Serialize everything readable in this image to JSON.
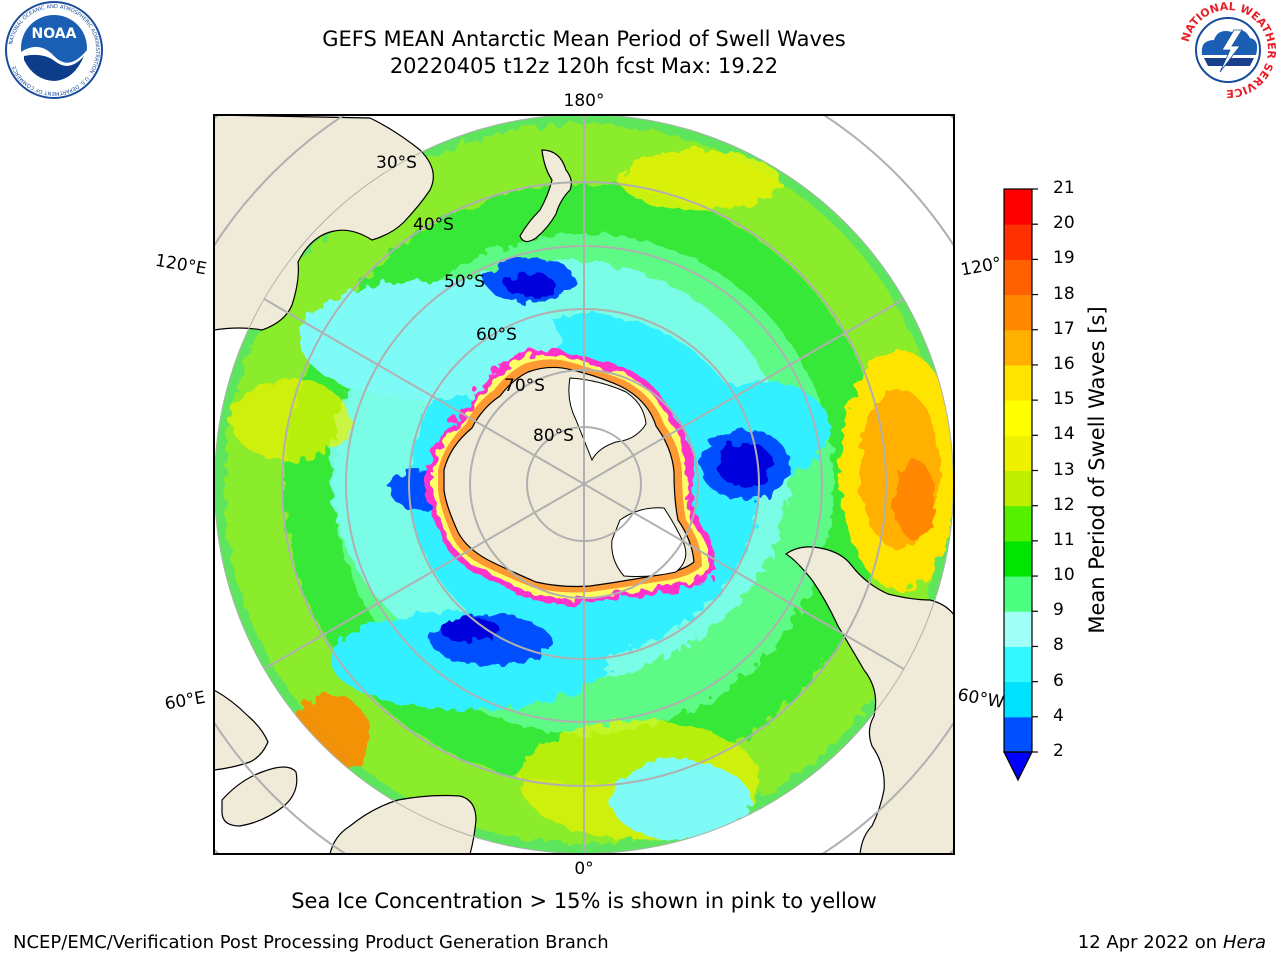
{
  "header": {
    "title_line1": "GEFS MEAN Antarctic Mean Period of Swell Waves",
    "title_line2": "20220405 t12z 120h fcst   Max: 19.22"
  },
  "logos": {
    "left": {
      "name": "noaa-logo",
      "text": "NOAA",
      "ring_text": "NATIONAL OCEANIC AND ATMOSPHERIC ADMINISTRATION · U.S. DEPARTMENT OF COMMERCE"
    },
    "right": {
      "name": "nws-logo",
      "ring_text": "NATIONAL WEATHER SERVICE"
    }
  },
  "map": {
    "projection": "south-polar-stereographic",
    "longitude_labels": [
      "180°",
      "120°E",
      "120°",
      "60°E",
      "60°W",
      "0°"
    ],
    "latitude_labels": [
      "30°S",
      "40°S",
      "50°S",
      "60°S",
      "70°S",
      "80°S"
    ],
    "land_color": "#efebd8",
    "ice_shelf_color": "#ffffff",
    "sea_ice_edge_colors": [
      "#ff33cc",
      "#ff9933",
      "#ffff66"
    ],
    "gridline_color": "#b0b0b0"
  },
  "colorbar": {
    "title": "Mean Period of Swell Waves [s]",
    "tick_labels": [
      "2",
      "4",
      "6",
      "8",
      "9",
      "10",
      "11",
      "12",
      "13",
      "14",
      "15",
      "16",
      "17",
      "18",
      "19",
      "20",
      "21"
    ],
    "colors": [
      "#0050ff",
      "#00e0ff",
      "#33f7ff",
      "#a0fff7",
      "#4dff80",
      "#00e600",
      "#55f000",
      "#c0f000",
      "#eef200",
      "#ffff00",
      "#ffe400",
      "#ffb000",
      "#ff8800",
      "#ff6000",
      "#ff3000",
      "#ff0000"
    ],
    "extend_color": "#0000ff"
  },
  "footer": {
    "sea_ice_note": "Sea Ice Concentration > 15% is shown in pink to yellow",
    "credit": "NCEP/EMC/Verification Post Processing Product Generation Branch",
    "run_date": "12 Apr 2022 on ",
    "machine": "Hera"
  }
}
